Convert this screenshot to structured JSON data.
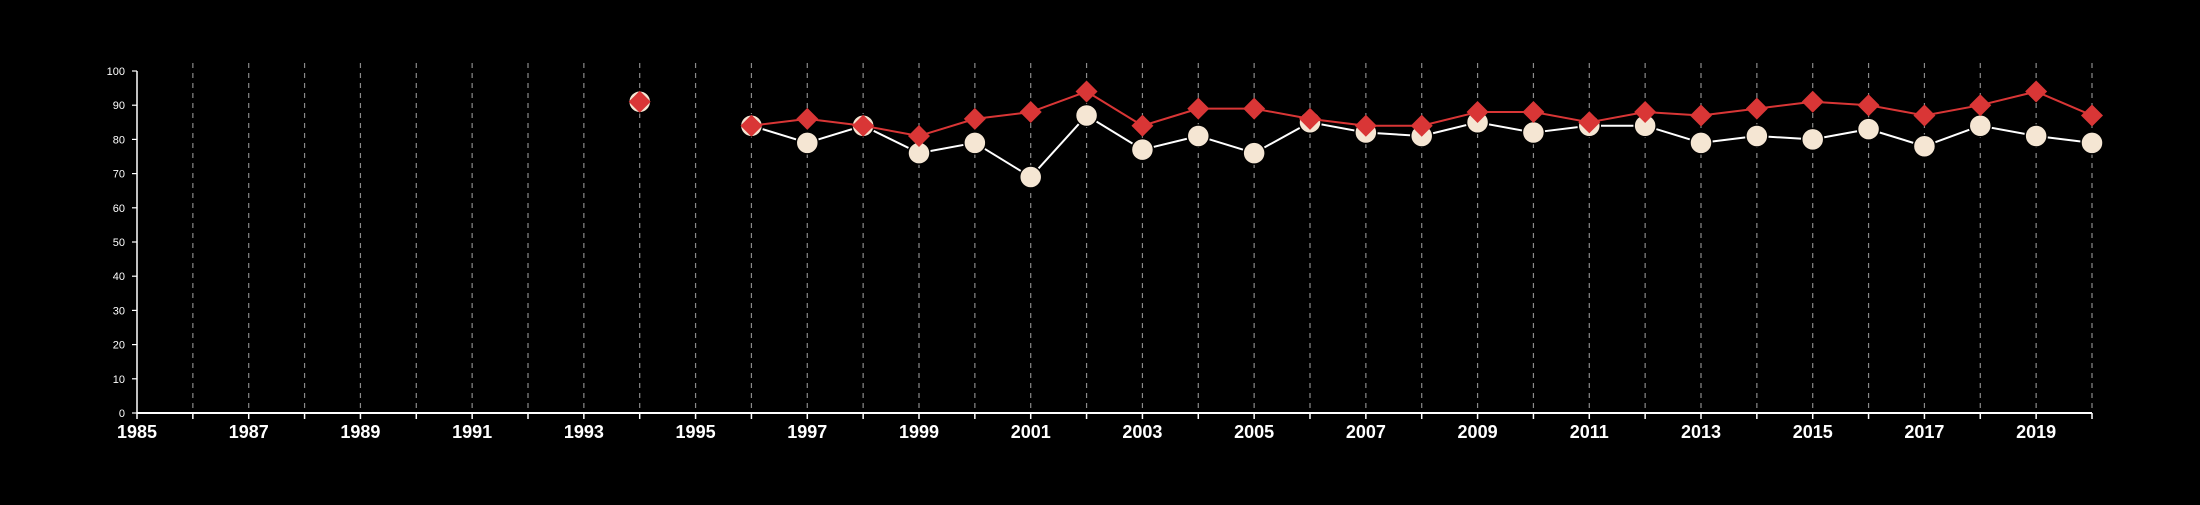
{
  "chart_data": {
    "type": "line",
    "title": "",
    "xlabel": "",
    "ylabel": "",
    "xlim": [
      1985,
      2020
    ],
    "ylim": [
      0,
      100
    ],
    "x_tick_labels": [
      "1985",
      "1987",
      "1989",
      "1991",
      "1993",
      "1995",
      "1997",
      "1999",
      "2001",
      "2003",
      "2005",
      "2007",
      "2009",
      "2011",
      "2013",
      "2015",
      "2017",
      "2019"
    ],
    "y_tick_labels": [
      "0",
      "10",
      "20",
      "30",
      "40",
      "50",
      "60",
      "70",
      "80",
      "90",
      "100"
    ],
    "vertical_gridlines": "dashed, every year from 1986 to 2020",
    "legend": "none",
    "x": [
      1994,
      1996,
      1997,
      1998,
      1999,
      2000,
      2001,
      2002,
      2003,
      2004,
      2005,
      2006,
      2007,
      2008,
      2009,
      2010,
      2011,
      2012,
      2013,
      2014,
      2015,
      2016,
      2017,
      2018,
      2019,
      2020
    ],
    "series": [
      {
        "marker": "circle",
        "color": "#f5e6d3",
        "values": [
          91,
          84,
          79,
          84,
          76,
          79,
          69,
          87,
          77,
          81,
          76,
          85,
          82,
          81,
          85,
          82,
          84,
          84,
          79,
          81,
          80,
          83,
          78,
          84,
          81,
          79
        ]
      },
      {
        "marker": "diamond",
        "color": "#d93636",
        "values": [
          91,
          84,
          86,
          84,
          81,
          86,
          88,
          94,
          84,
          89,
          89,
          86,
          84,
          84,
          88,
          88,
          85,
          88,
          87,
          89,
          91,
          90,
          87,
          90,
          94,
          87
        ]
      }
    ]
  }
}
